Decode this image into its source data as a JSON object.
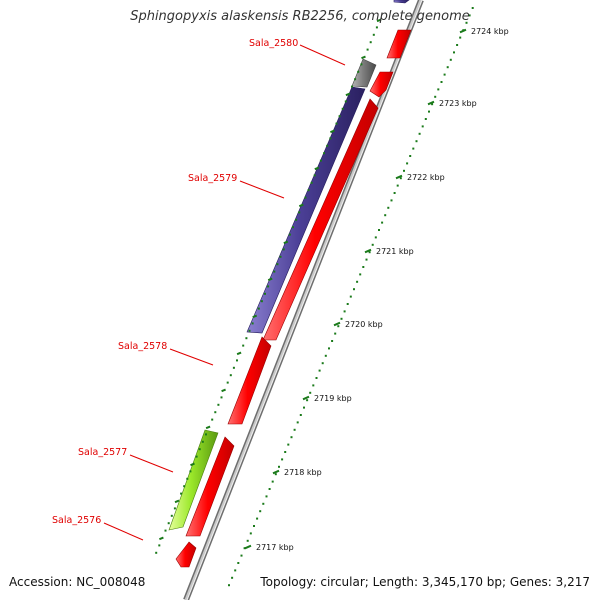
{
  "title": "Sphingopyxis alaskensis RB2256, complete genome",
  "footer": {
    "accession": "Accession: NC_008048",
    "topology": "Topology: circular; Length: 3,345,170 bp; Genes: 3,217"
  },
  "scale_labels": [
    "2724 kbp",
    "2723 kbp",
    "2722 kbp",
    "2721 kbp",
    "2720 kbp",
    "2719 kbp",
    "2718 kbp",
    "2717 kbp"
  ],
  "gene_labels": [
    "Sala_2580",
    "Sala_2579",
    "Sala_2578",
    "Sala_2577",
    "Sala_2576"
  ],
  "colors": {
    "forward_gene": "#ff0000",
    "reverse_gene": "#4b3f96",
    "rna_gene": "#7f7f7f",
    "other_gene": "#9be82a",
    "backbone": "#9a9a9a",
    "ticks": "#1a7a1a",
    "label": "#e00000"
  }
}
